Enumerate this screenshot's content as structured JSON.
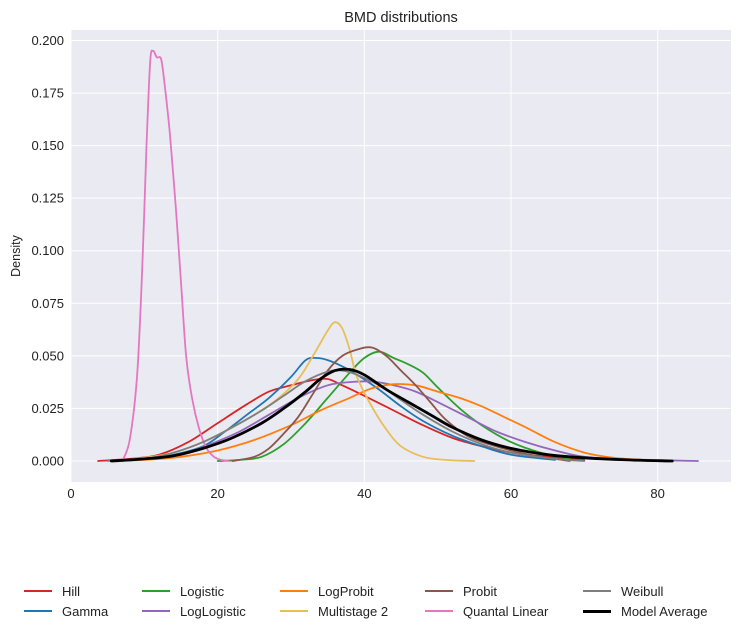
{
  "chart_data": {
    "type": "line",
    "title": "BMD distributions",
    "xlabel": "",
    "ylabel": "Density",
    "xlim": [
      0,
      90
    ],
    "ylim": [
      -0.01,
      0.205
    ],
    "xticks": [
      0,
      20,
      40,
      60,
      80
    ],
    "yticks": [
      0.0,
      0.025,
      0.05,
      0.075,
      0.1,
      0.125,
      0.15,
      0.175,
      0.2
    ],
    "xtick_labels": [
      "0",
      "20",
      "40",
      "60",
      "80"
    ],
    "ytick_labels": [
      "0.000",
      "0.025",
      "0.050",
      "0.075",
      "0.100",
      "0.125",
      "0.150",
      "0.175",
      "0.200"
    ],
    "grid": true,
    "legend_position": "bottom",
    "series": [
      {
        "name": "Hill",
        "color": "#d62728",
        "points": [
          [
            3.7,
            0
          ],
          [
            8,
            0.001
          ],
          [
            12,
            0.003
          ],
          [
            16,
            0.009
          ],
          [
            20,
            0.018
          ],
          [
            24,
            0.027
          ],
          [
            27,
            0.033
          ],
          [
            30,
            0.036
          ],
          [
            33,
            0.0385
          ],
          [
            35,
            0.039
          ],
          [
            37,
            0.036
          ],
          [
            40,
            0.031
          ],
          [
            44,
            0.024
          ],
          [
            48,
            0.017
          ],
          [
            52,
            0.011
          ],
          [
            56,
            0.007
          ],
          [
            60,
            0.004
          ],
          [
            65,
            0.002
          ],
          [
            70,
            0.0005
          ]
        ]
      },
      {
        "name": "Gamma",
        "color": "#1f77b4",
        "points": [
          [
            5.5,
            0
          ],
          [
            10,
            0.001
          ],
          [
            14,
            0.003
          ],
          [
            18,
            0.007
          ],
          [
            21,
            0.014
          ],
          [
            24,
            0.022
          ],
          [
            27,
            0.03
          ],
          [
            30,
            0.04
          ],
          [
            32,
            0.048
          ],
          [
            33.5,
            0.049
          ],
          [
            35,
            0.048
          ],
          [
            37,
            0.045
          ],
          [
            39,
            0.041
          ],
          [
            42,
            0.034
          ],
          [
            45,
            0.026
          ],
          [
            48,
            0.019
          ],
          [
            52,
            0.012
          ],
          [
            56,
            0.007
          ],
          [
            60,
            0.003
          ],
          [
            66,
            0.0005
          ]
        ]
      },
      {
        "name": "Logistic",
        "color": "#2ca02c",
        "points": [
          [
            20,
            0
          ],
          [
            23,
            0.0005
          ],
          [
            26,
            0.002
          ],
          [
            29,
            0.008
          ],
          [
            32,
            0.018
          ],
          [
            35,
            0.03
          ],
          [
            38,
            0.042
          ],
          [
            40,
            0.049
          ],
          [
            42,
            0.052
          ],
          [
            44,
            0.049
          ],
          [
            46,
            0.046
          ],
          [
            48,
            0.042
          ],
          [
            50,
            0.035
          ],
          [
            53,
            0.025
          ],
          [
            56,
            0.017
          ],
          [
            60,
            0.009
          ],
          [
            64,
            0.004
          ],
          [
            68,
            0.001
          ]
        ]
      },
      {
        "name": "LogLogistic",
        "color": "#9467bd",
        "points": [
          [
            5,
            0
          ],
          [
            10,
            0.001
          ],
          [
            15,
            0.003
          ],
          [
            19,
            0.008
          ],
          [
            23,
            0.014
          ],
          [
            27,
            0.022
          ],
          [
            31,
            0.03
          ],
          [
            35,
            0.036
          ],
          [
            38,
            0.0375
          ],
          [
            41,
            0.0378
          ],
          [
            44,
            0.036
          ],
          [
            47,
            0.033
          ],
          [
            50,
            0.028
          ],
          [
            54,
            0.021
          ],
          [
            58,
            0.014
          ],
          [
            62,
            0.009
          ],
          [
            66,
            0.005
          ],
          [
            70,
            0.002
          ],
          [
            76,
            0.0008
          ],
          [
            85.5,
            0
          ]
        ]
      },
      {
        "name": "LogProbit",
        "color": "#ff7f0e",
        "points": [
          [
            5.5,
            0
          ],
          [
            10,
            0.0005
          ],
          [
            15,
            0.002
          ],
          [
            20,
            0.005
          ],
          [
            25,
            0.01
          ],
          [
            30,
            0.017
          ],
          [
            34,
            0.024
          ],
          [
            38,
            0.03
          ],
          [
            41,
            0.0345
          ],
          [
            44,
            0.0365
          ],
          [
            47,
            0.036
          ],
          [
            50,
            0.033
          ],
          [
            53,
            0.03
          ],
          [
            56,
            0.026
          ],
          [
            59,
            0.021
          ],
          [
            62,
            0.016
          ],
          [
            66,
            0.009
          ],
          [
            70,
            0.004
          ],
          [
            74,
            0.0015
          ],
          [
            78,
            0.0005
          ],
          [
            82,
            0
          ]
        ]
      },
      {
        "name": "Multistage 2",
        "color": "#e8bf56",
        "points": [
          [
            6,
            0
          ],
          [
            10,
            0.0015
          ],
          [
            14,
            0.004
          ],
          [
            18,
            0.009
          ],
          [
            22,
            0.016
          ],
          [
            25,
            0.022
          ],
          [
            28,
            0.029
          ],
          [
            31,
            0.039
          ],
          [
            33,
            0.05
          ],
          [
            35,
            0.062
          ],
          [
            36,
            0.066
          ],
          [
            37,
            0.063
          ],
          [
            38,
            0.053
          ],
          [
            39,
            0.04
          ],
          [
            41,
            0.026
          ],
          [
            43,
            0.015
          ],
          [
            45,
            0.007
          ],
          [
            48,
            0.002
          ],
          [
            51,
            0.0005
          ],
          [
            55,
            0
          ]
        ]
      },
      {
        "name": "Probit",
        "color": "#8c564b",
        "points": [
          [
            22,
            0
          ],
          [
            25,
            0.002
          ],
          [
            27,
            0.006
          ],
          [
            29,
            0.013
          ],
          [
            31,
            0.021
          ],
          [
            33,
            0.032
          ],
          [
            35,
            0.043
          ],
          [
            37,
            0.05
          ],
          [
            39,
            0.053
          ],
          [
            41,
            0.054
          ],
          [
            43,
            0.05
          ],
          [
            45,
            0.043
          ],
          [
            47,
            0.036
          ],
          [
            49,
            0.028
          ],
          [
            51,
            0.02
          ],
          [
            54,
            0.012
          ],
          [
            57,
            0.008
          ],
          [
            60,
            0.005
          ],
          [
            64,
            0.002
          ],
          [
            68,
            0
          ]
        ]
      },
      {
        "name": "Quantal Linear",
        "color": "#e377c2",
        "points": [
          [
            7,
            0
          ],
          [
            8,
            0.01
          ],
          [
            9,
            0.04
          ],
          [
            9.7,
            0.09
          ],
          [
            10.3,
            0.15
          ],
          [
            10.8,
            0.19
          ],
          [
            11.2,
            0.195
          ],
          [
            11.7,
            0.192
          ],
          [
            12.3,
            0.191
          ],
          [
            12.8,
            0.178
          ],
          [
            13.5,
            0.155
          ],
          [
            14.3,
            0.12
          ],
          [
            15,
            0.085
          ],
          [
            15.7,
            0.05
          ],
          [
            16.5,
            0.03
          ],
          [
            17.5,
            0.015
          ],
          [
            18.5,
            0.006
          ],
          [
            19.5,
            0.002
          ],
          [
            20.5,
            0.0005
          ],
          [
            21.5,
            0
          ]
        ]
      },
      {
        "name": "Weibull",
        "color": "#7f7f7f",
        "points": [
          [
            5.5,
            0
          ],
          [
            10,
            0.001
          ],
          [
            14,
            0.004
          ],
          [
            18,
            0.009
          ],
          [
            22,
            0.016
          ],
          [
            26,
            0.024
          ],
          [
            29,
            0.031
          ],
          [
            32,
            0.038
          ],
          [
            35,
            0.0425
          ],
          [
            37,
            0.043
          ],
          [
            39,
            0.041
          ],
          [
            42,
            0.036
          ],
          [
            45,
            0.029
          ],
          [
            48,
            0.022
          ],
          [
            52,
            0.014
          ],
          [
            56,
            0.008
          ],
          [
            60,
            0.004
          ],
          [
            66,
            0.001
          ],
          [
            70,
            0
          ]
        ]
      },
      {
        "name": "Model Average",
        "color": "#000000",
        "bold": true,
        "points": [
          [
            5.5,
            0
          ],
          [
            10,
            0.001
          ],
          [
            14,
            0.0025
          ],
          [
            18,
            0.006
          ],
          [
            22,
            0.011
          ],
          [
            26,
            0.018
          ],
          [
            29,
            0.025
          ],
          [
            32,
            0.033
          ],
          [
            34,
            0.039
          ],
          [
            36,
            0.043
          ],
          [
            38,
            0.0435
          ],
          [
            40,
            0.041
          ],
          [
            43,
            0.034
          ],
          [
            46,
            0.028
          ],
          [
            49,
            0.022
          ],
          [
            52,
            0.016
          ],
          [
            56,
            0.01
          ],
          [
            60,
            0.006
          ],
          [
            65,
            0.003
          ],
          [
            70,
            0.0015
          ],
          [
            76,
            0.0005
          ],
          [
            82,
            0
          ]
        ]
      }
    ]
  }
}
